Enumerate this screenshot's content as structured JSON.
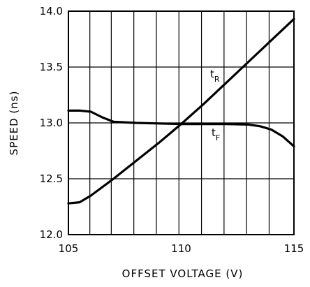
{
  "chart_data": {
    "type": "line",
    "title": "",
    "xlabel": "OFFSET VOLTAGE (V)",
    "ylabel": "SPEED (ns)",
    "xlim": [
      105,
      115
    ],
    "ylim": [
      12.0,
      14.0
    ],
    "x_ticks": [
      105,
      110,
      115
    ],
    "x_tick_labels": [
      "105",
      "110",
      "115"
    ],
    "x_minor_gridlines": [
      105,
      105.95,
      106.9,
      107.9,
      108.9,
      109.9,
      110.9,
      111.9,
      112.9,
      113.9,
      115
    ],
    "y_ticks": [
      12.0,
      12.5,
      13.0,
      13.5,
      14.0
    ],
    "y_tick_labels": [
      "12.0",
      "12.5",
      "13.0",
      "13.5",
      "14.0"
    ],
    "grid": true,
    "series": [
      {
        "name": "tR",
        "label_main": "t",
        "label_sub": "R",
        "x": [
          105,
          105.5,
          106,
          107,
          108,
          109,
          110,
          111,
          112,
          113,
          114,
          115
        ],
        "y": [
          12.28,
          12.29,
          12.35,
          12.5,
          12.66,
          12.82,
          12.99,
          13.17,
          13.36,
          13.55,
          13.74,
          13.93
        ]
      },
      {
        "name": "tF",
        "label_main": "t",
        "label_sub": "F",
        "x": [
          105,
          105.5,
          106,
          106.5,
          107,
          108,
          109,
          110,
          111,
          112,
          113,
          113.5,
          114,
          114.5,
          115
        ],
        "y": [
          13.11,
          13.11,
          13.1,
          13.05,
          13.01,
          13.0,
          12.995,
          12.99,
          12.99,
          12.99,
          12.985,
          12.97,
          12.94,
          12.88,
          12.79
        ]
      }
    ]
  }
}
